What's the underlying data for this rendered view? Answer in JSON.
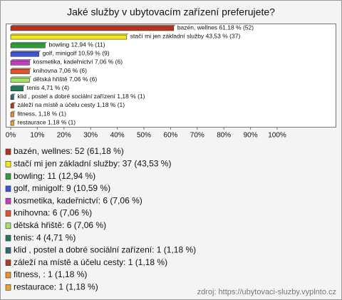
{
  "chart_data": {
    "type": "hbar",
    "title": "Jaké služby v ubytovacím zařízení preferujete?",
    "categories": [
      "bazén, wellnes",
      "stačí mi jen základní služby",
      "bowling",
      "golf, minigolf",
      "kosmetika, kadeřnictví",
      "knihovna",
      "dětská hřiště",
      "tenis",
      "klid , postel  a dobré sociální zařízení",
      "záleží na místě a účelu cesty",
      "fitness, ",
      "restaurace"
    ],
    "values": [
      61.18,
      43.53,
      12.94,
      10.59,
      7.06,
      7.06,
      7.06,
      4.71,
      1.18,
      1.18,
      1.18,
      1.18
    ],
    "value_labels": [
      "bazén, wellnes 61,18 % (52)",
      "stačí mi jen základní služby 43,53 % (37)",
      "bowling 12,94 % (11)",
      "golf, minigolf 10,59 % (9)",
      "kosmetika, kadeřnictví 7,06 % (6)",
      "knihovna 7,06 % (6)",
      "dětská hřiště 7,06 % (6)",
      "tenis 4,71 % (4)",
      "klid , postel  a dobré sociální zařízení 1,18 % (1)",
      "záleží na místě a účelu cesty 1,18 % (1)",
      "fitness,  1,18 % (1)",
      "restaurace 1,18 % (1)"
    ],
    "legend": [
      "bazén, wellnes: 52 (61,18 %)",
      "stačí mi jen základní služby: 37 (43,53 %)",
      "bowling: 11 (12,94 %)",
      "golf, minigolf: 9 (10,59 %)",
      "kosmetika, kadeřnictví: 6 (7,06 %)",
      "knihovna: 6 (7,06 %)",
      "dětská hřiště: 6 (7,06 %)",
      "tenis: 4 (4,71 %)",
      "klid , postel  a dobré sociální zařízení: 1 (1,18 %)",
      "záleží na místě a účelu cesty: 1 (1,18 %)",
      "fitness, : 1 (1,18 %)",
      "restaurace: 1 (1,18 %)"
    ],
    "colors": [
      "#b8321e",
      "#f2e81a",
      "#2e9e3a",
      "#3a56d6",
      "#c23cc4",
      "#e0522a",
      "#a6e066",
      "#1f7a58",
      "#2f6a78",
      "#a8401e",
      "#e8902a",
      "#f0a030"
    ],
    "xlim": [
      0,
      100
    ],
    "xticks": [
      {
        "value": 0,
        "label": "0%"
      },
      {
        "value": 10,
        "label": "10%"
      },
      {
        "value": 20,
        "label": "20%"
      },
      {
        "value": 30,
        "label": "30%"
      },
      {
        "value": 40,
        "label": "40%"
      },
      {
        "value": 50,
        "label": "50%"
      },
      {
        "value": 60,
        "label": "60%"
      },
      {
        "value": 70,
        "label": "70%"
      },
      {
        "value": 80,
        "label": "80%"
      },
      {
        "value": 90,
        "label": "90%"
      },
      {
        "value": 100,
        "label": "100%"
      }
    ],
    "source": "zdroj: https://ubytovaci-sluzby.vyplnto.cz"
  }
}
